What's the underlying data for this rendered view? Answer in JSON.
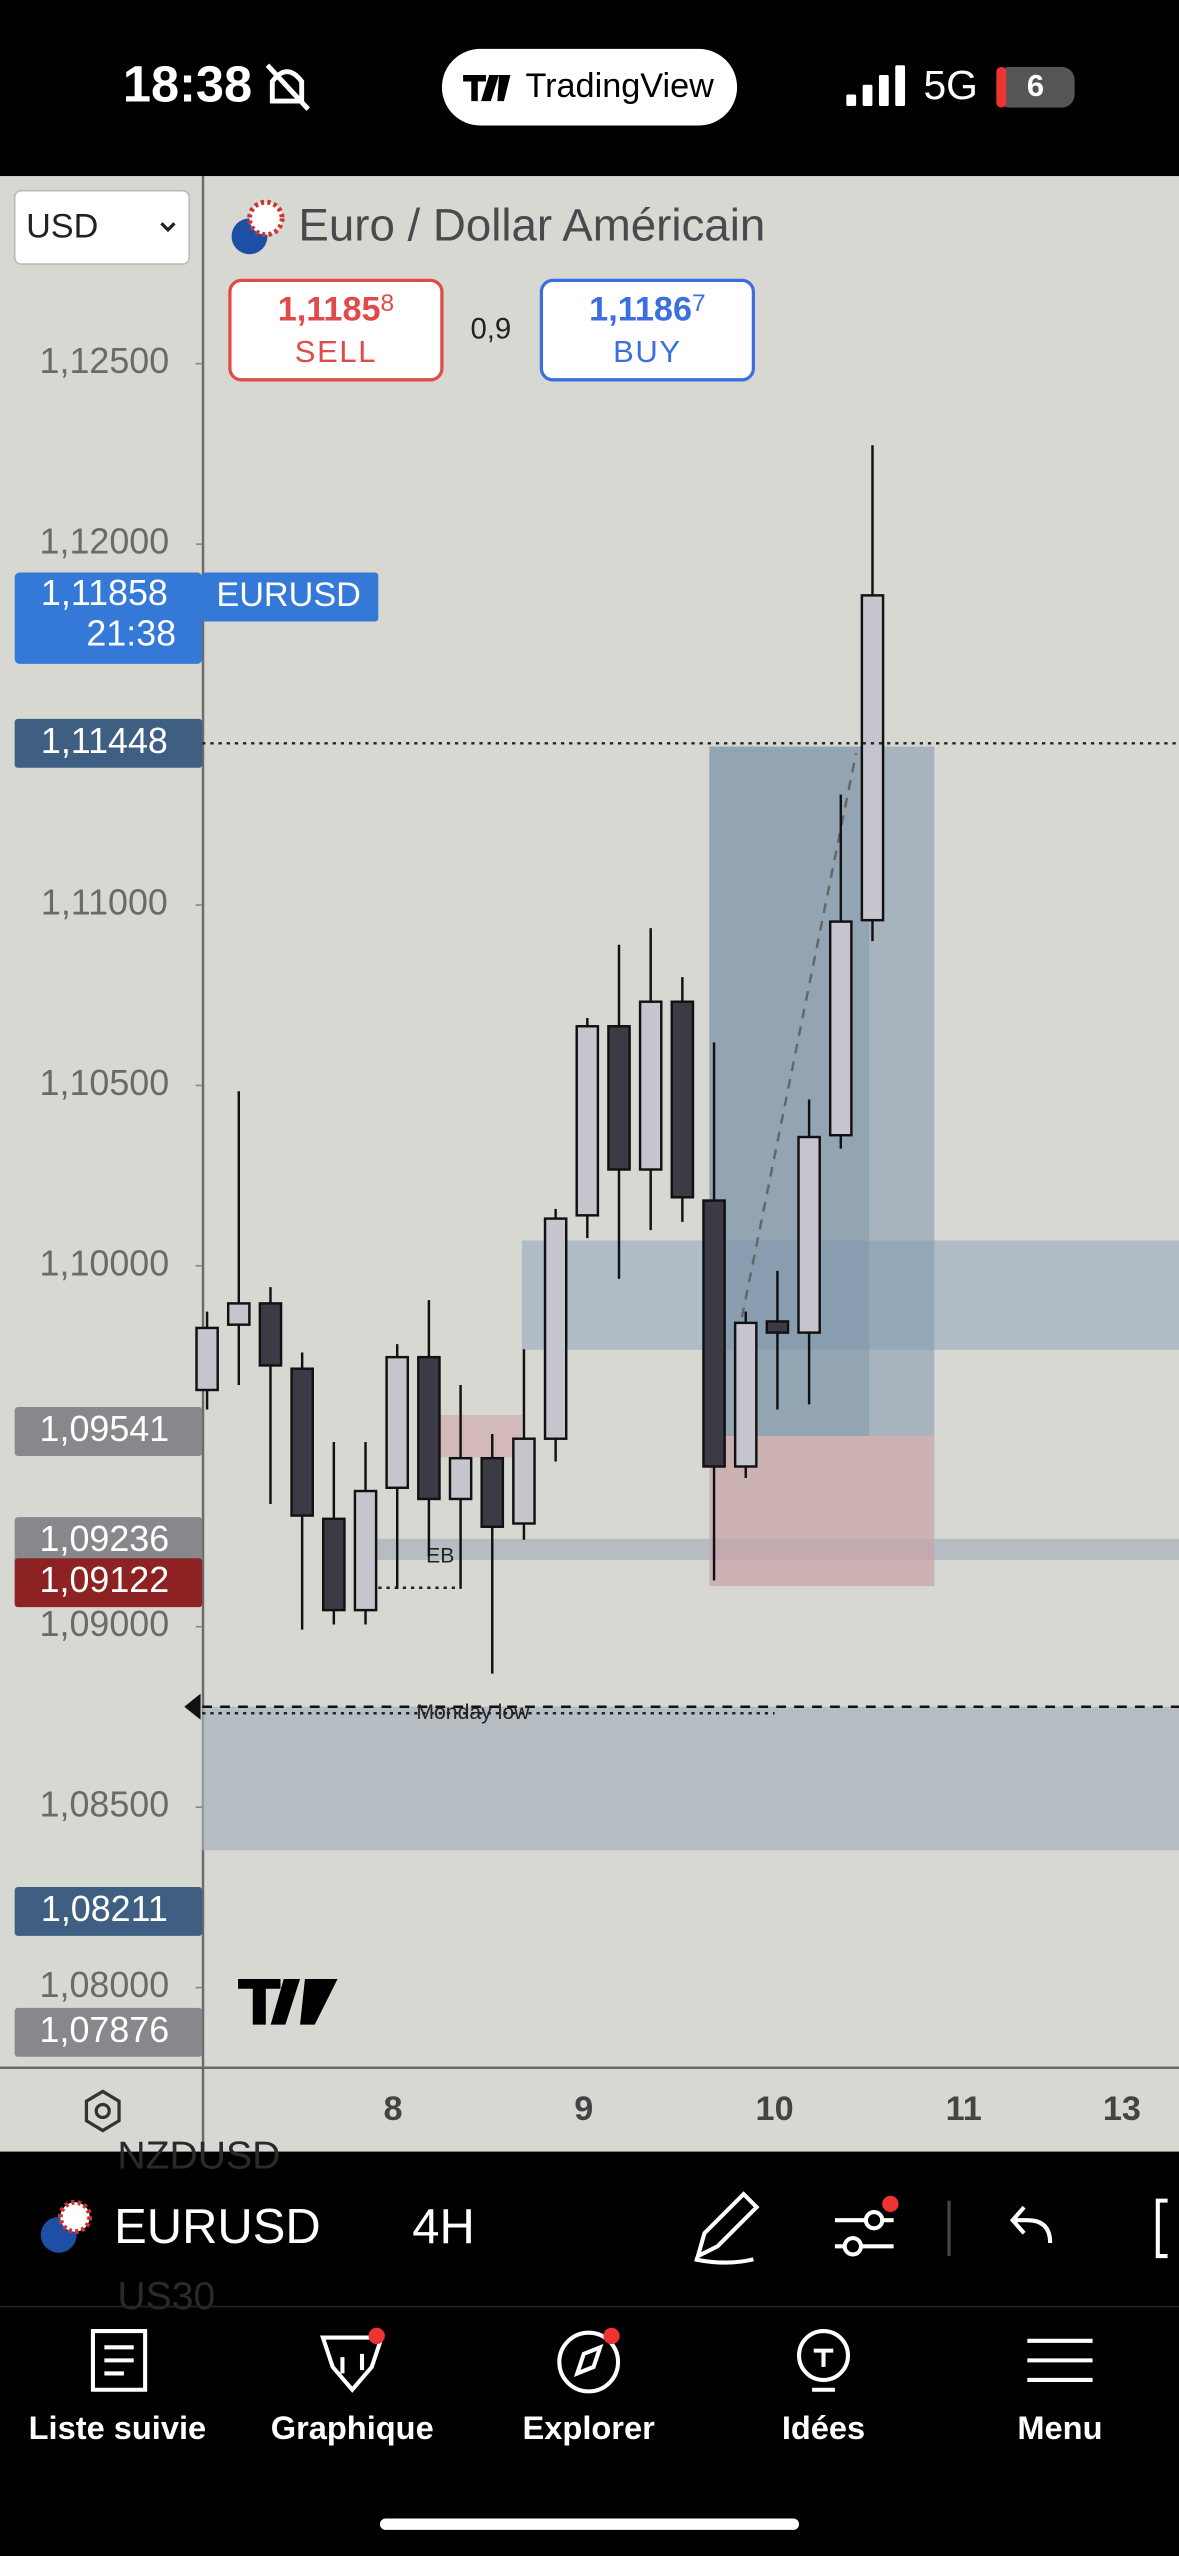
{
  "status_bar": {
    "time": "18:38",
    "app": "TradingView",
    "network": "5G",
    "battery": "6"
  },
  "header": {
    "currency": "USD",
    "title": "Euro / Dollar Américain",
    "sell": {
      "price": "1,1185",
      "pip": "8",
      "label": "SELL"
    },
    "spread": "0,9",
    "buy": {
      "price": "1,1186",
      "pip": "7",
      "label": "BUY"
    }
  },
  "chart": {
    "type": "candlestick",
    "symbol_tag": "EURUSD",
    "ylim": [
      1.0778,
      1.1302
    ],
    "yticks": [
      {
        "value": 1.125,
        "label": "1,12500"
      },
      {
        "value": 1.12,
        "label": "1,12000"
      },
      {
        "value": 1.11,
        "label": "1,11000"
      },
      {
        "value": 1.105,
        "label": "1,10500"
      },
      {
        "value": 1.1,
        "label": "1,10000"
      },
      {
        "value": 1.09,
        "label": "1,09000"
      },
      {
        "value": 1.085,
        "label": "1,08500"
      },
      {
        "value": 1.08,
        "label": "1,08000"
      }
    ],
    "x_labels": [
      "8",
      "9",
      "10",
      "11",
      "13"
    ],
    "open": [
      1.09656,
      1.09837,
      1.09896,
      1.09715,
      1.09299,
      1.09046,
      1.09385,
      1.09747,
      1.09354,
      1.09467,
      1.09286,
      1.09521,
      1.1014,
      1.10664,
      1.10267,
      1.10732,
      1.10181,
      1.09444,
      1.09846,
      1.09815,
      1.10362,
      1.10958
    ],
    "high": [
      1.09873,
      1.10484,
      1.09941,
      1.0976,
      1.09512,
      1.09512,
      1.09783,
      1.09905,
      1.0967,
      1.09534,
      1.09769,
      1.10158,
      1.10687,
      1.1089,
      1.10936,
      1.108,
      1.10619,
      1.09873,
      1.09986,
      1.10461,
      1.11306,
      1.12274
    ],
    "low": [
      1.09602,
      1.0967,
      1.0934,
      1.08992,
      1.09006,
      1.09006,
      1.09105,
      1.09195,
      1.09105,
      1.0887,
      1.09241,
      1.09458,
      1.10077,
      1.09964,
      1.10099,
      1.10122,
      1.09128,
      1.09412,
      1.09602,
      1.09616,
      1.10325,
      1.109
    ],
    "close": [
      1.09828,
      1.09896,
      1.09724,
      1.09308,
      1.09046,
      1.09376,
      1.09747,
      1.09354,
      1.09467,
      1.09277,
      1.09521,
      1.10131,
      1.10664,
      1.10267,
      1.10732,
      1.1019,
      1.09444,
      1.09842,
      1.09815,
      1.10357,
      1.10954,
      1.11858
    ],
    "price_markers": [
      {
        "value": 1.11858,
        "label": "1,11858",
        "sub": "21:38",
        "color": "#3478d8"
      },
      {
        "value": 1.11448,
        "label": "1,11448",
        "color": "#3e5f82"
      },
      {
        "value": 1.09541,
        "label": "1,09541",
        "color": "#88888c"
      },
      {
        "value": 1.09236,
        "label": "1,09236",
        "color": "#88888c"
      },
      {
        "value": 1.09122,
        "label": "1,09122",
        "color": "#8c2222"
      },
      {
        "value": 1.08211,
        "label": "1,08211",
        "color": "#3e5f82"
      },
      {
        "value": 1.07876,
        "label": "1,07876",
        "color": "#88888c"
      }
    ],
    "annotations": {
      "eb": "EB",
      "monday_low": "Monday low"
    }
  },
  "toolbar": {
    "symbol": "EURUSD",
    "interval": "4H",
    "ghost_above": "NZDUSD",
    "ghost_below": "US30"
  },
  "tabs": [
    "Liste suivie",
    "Graphique",
    "Explorer",
    "Idées",
    "Menu"
  ]
}
